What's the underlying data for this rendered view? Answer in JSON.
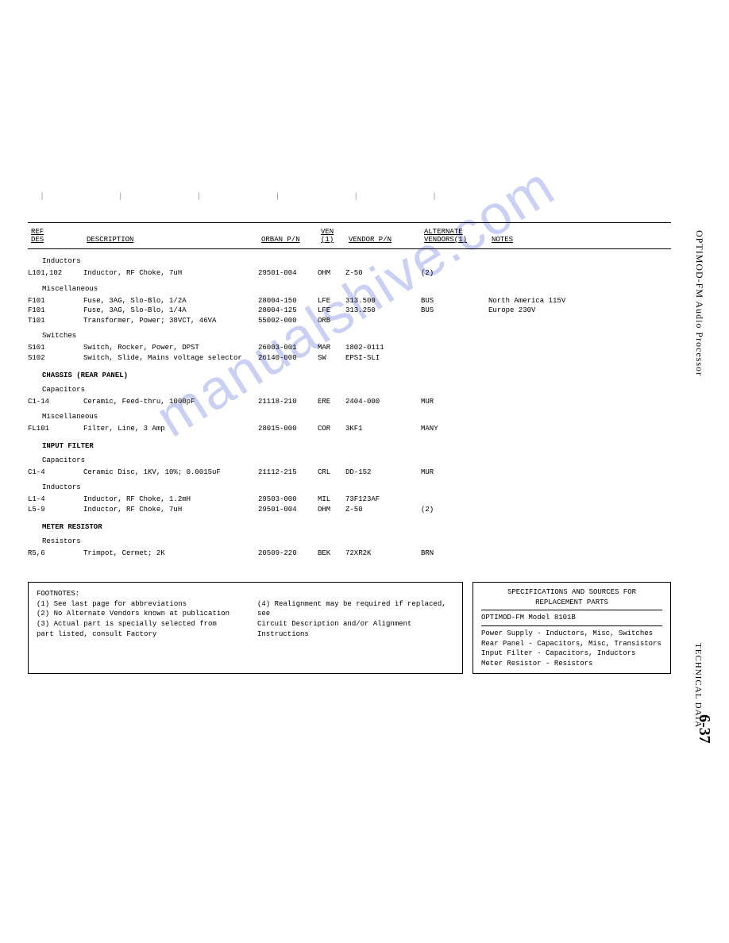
{
  "side": {
    "title1": "OPTIMOD-FM Audio Processor",
    "title2": "TECHNICAL DATA",
    "page": "6-37"
  },
  "watermark": "manualshive.com",
  "headers": {
    "ref": "REF",
    "des": "DES",
    "desc": "DESCRIPTION",
    "orban": "ORBAN P/N",
    "ven": "VEN",
    "ven1": "(1)",
    "vendor": "VENDOR P/N",
    "altv": "ALTERNATE",
    "altv2": "VENDORS(1)",
    "notes": "NOTES"
  },
  "sections": [
    {
      "sub": "Inductors",
      "rows": [
        {
          "ref": "L101,102",
          "desc": "Inductor, RF Choke, 7uH",
          "orb": "29501-004",
          "ven": "OHM",
          "vpn": "Z-50",
          "alt": "(2)",
          "note": ""
        }
      ]
    },
    {
      "sub": "Miscellaneous",
      "rows": [
        {
          "ref": "F101",
          "desc": "Fuse, 3AG, Slo-Blo, 1/2A",
          "orb": "28004-150",
          "ven": "LFE",
          "vpn": "313.500",
          "alt": "BUS",
          "note": "North America 115V"
        },
        {
          "ref": "F101",
          "desc": "Fuse, 3AG, Slo-Blo, 1/4A",
          "orb": "28004-125",
          "ven": "LFE",
          "vpn": "313.250",
          "alt": "BUS",
          "note": "Europe 230V"
        },
        {
          "ref": "T101",
          "desc": "Transformer, Power; 38VCT, 46VA",
          "orb": "55002-000",
          "ven": "ORB",
          "vpn": "",
          "alt": "",
          "note": ""
        }
      ]
    },
    {
      "sub": "Switches",
      "rows": [
        {
          "ref": "S101",
          "desc": "Switch, Rocker, Power, DPST",
          "orb": "26003-001",
          "ven": "MAR",
          "vpn": "1802-0111",
          "alt": "",
          "note": ""
        },
        {
          "ref": "S102",
          "desc": "Switch, Slide, Mains voltage selector",
          "orb": "26140-000",
          "ven": "SW",
          "vpn": "EPSI-SLI",
          "alt": "",
          "note": ""
        }
      ]
    },
    {
      "grp": "CHASSIS (REAR PANEL)"
    },
    {
      "sub": "Capacitors",
      "rows": [
        {
          "ref": "C1-14",
          "desc": "Ceramic, Feed-thru, 1000pF",
          "orb": "21118-210",
          "ven": "ERE",
          "vpn": "2404-000",
          "alt": "MUR",
          "note": ""
        }
      ]
    },
    {
      "sub": "Miscellaneous",
      "rows": [
        {
          "ref": "FL101",
          "desc": "Filter, Line, 3 Amp",
          "orb": "28015-000",
          "ven": "COR",
          "vpn": "3KF1",
          "alt": "MANY",
          "note": ""
        }
      ]
    },
    {
      "grp": "INPUT FILTER"
    },
    {
      "sub": "Capacitors",
      "rows": [
        {
          "ref": "C1-4",
          "desc": "Ceramic Disc, 1KV, 10%; 0.0015uF",
          "orb": "21112-215",
          "ven": "CRL",
          "vpn": "DD-152",
          "alt": "MUR",
          "note": ""
        }
      ]
    },
    {
      "sub": "Inductors",
      "rows": [
        {
          "ref": "L1-4",
          "desc": "Inductor, RF Choke, 1.2mH",
          "orb": "29503-000",
          "ven": "MIL",
          "vpn": "73F123AF",
          "alt": "",
          "note": ""
        },
        {
          "ref": "L5-9",
          "desc": "Inductor, RF Choke, 7uH",
          "orb": "29501-004",
          "ven": "OHM",
          "vpn": "Z-50",
          "alt": "(2)",
          "note": ""
        }
      ]
    },
    {
      "grp": "METER RESISTOR"
    },
    {
      "sub": "Resistors",
      "rows": [
        {
          "ref": "R5,6",
          "desc": "Trimpot, Cermet; 2K",
          "orb": "20509-220",
          "ven": "BEK",
          "vpn": "72XR2K",
          "alt": "BRN",
          "note": ""
        }
      ]
    }
  ],
  "footnotes": {
    "title": "FOOTNOTES:",
    "left": [
      "(1)  See last page for abbreviations",
      "(2)  No Alternate Vendors known at publication",
      "(3)  Actual part is specially selected from",
      "      part listed, consult Factory"
    ],
    "right": [
      "(4)  Realignment may be required if replaced, see",
      "      Circuit Description and/or Alignment",
      "      Instructions"
    ]
  },
  "specbox": {
    "t1": "SPECIFICATIONS AND SOURCES FOR",
    "t2": "REPLACEMENT PARTS",
    "model": "OPTIMOD-FM Model 8101B",
    "lines": [
      "Power Supply - Inductors, Misc, Switches",
      "Rear Panel - Capacitors, Misc, Transistors",
      "Input Filter - Capacitors, Inductors",
      "Meter Resistor - Resistors"
    ]
  }
}
